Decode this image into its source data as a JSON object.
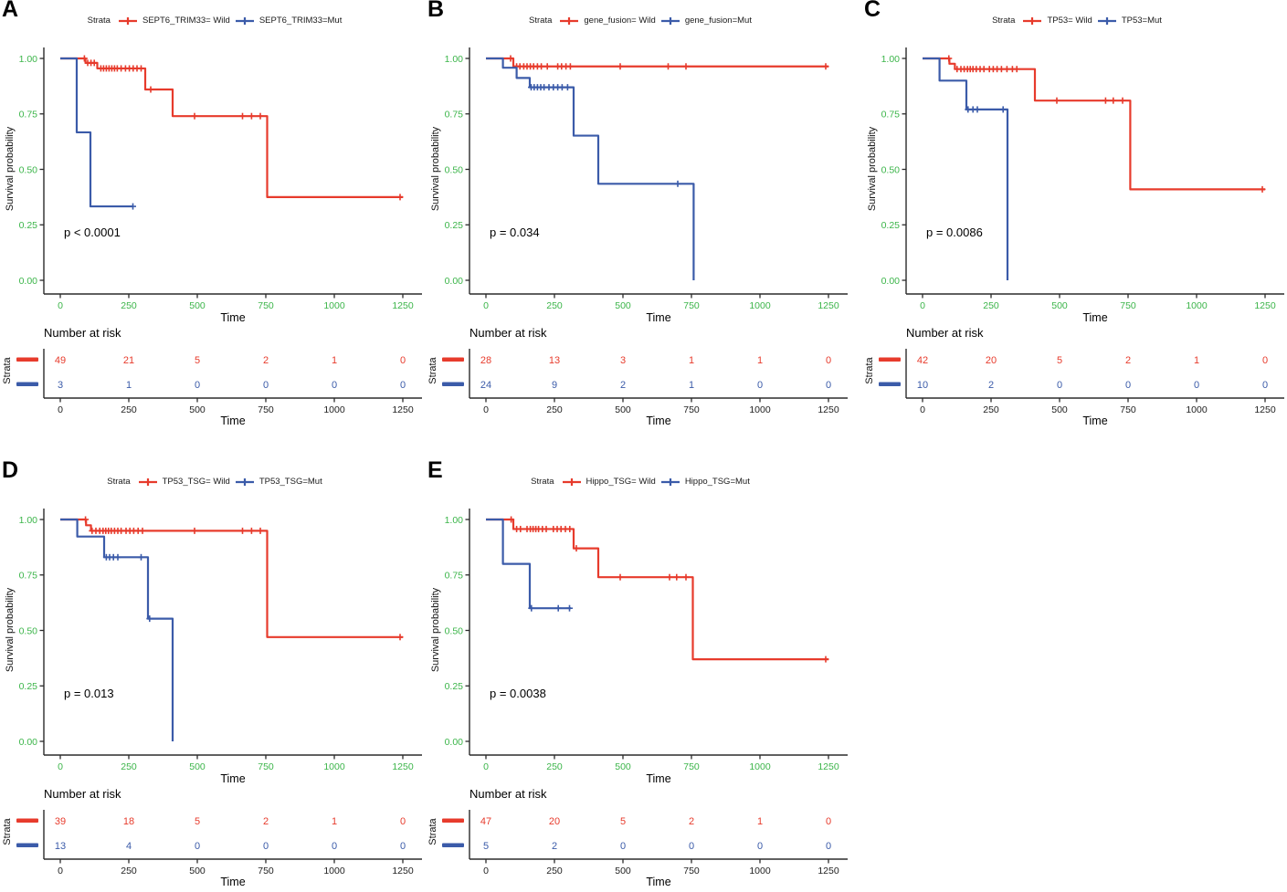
{
  "colors": {
    "wild": "#E73B2C",
    "mut": "#3B5BA9",
    "tick_green": "#3CB54A",
    "axis": "#2B2B2B",
    "risk_tick_text": "#222222"
  },
  "common": {
    "legend_title": "Strata",
    "ylabel": "Survival probability",
    "xlabel": "Time",
    "risk_title": "Number at risk",
    "risk_ylabel": "Strata",
    "xticks": [
      0,
      250,
      500,
      750,
      1000,
      1250
    ],
    "yticks": [
      "1.00",
      "0.75",
      "0.50",
      "0.25",
      "0.00"
    ],
    "xlim": [
      0,
      1250
    ],
    "ylim": [
      0,
      1
    ]
  },
  "chart_data": [
    {
      "panel": "A",
      "type": "line",
      "legend_title": "Strata",
      "xlabel": "Time",
      "ylabel": "Survival probability",
      "p_value": "p < 0.0001",
      "xlim": [
        0,
        1250
      ],
      "xticks": [
        0,
        250,
        500,
        750,
        1000,
        1250
      ],
      "yticks": [
        "1.00",
        "0.75",
        "0.50",
        "0.25",
        "0.00"
      ],
      "series": [
        {
          "name": "SEPT6_TRIM33= Wild",
          "color": "wild",
          "steps": [
            [
              0,
              1
            ],
            [
              92,
              0.98
            ],
            [
              135,
              0.955
            ],
            [
              310,
              0.86
            ],
            [
              410,
              0.74
            ],
            [
              755,
              0.375
            ],
            [
              1250,
              0.375
            ]
          ],
          "censors": [
            [
              88,
              1
            ],
            [
              100,
              0.98
            ],
            [
              112,
              0.98
            ],
            [
              124,
              0.98
            ],
            [
              148,
              0.955
            ],
            [
              158,
              0.955
            ],
            [
              168,
              0.955
            ],
            [
              178,
              0.955
            ],
            [
              188,
              0.955
            ],
            [
              198,
              0.955
            ],
            [
              208,
              0.955
            ],
            [
              222,
              0.955
            ],
            [
              238,
              0.955
            ],
            [
              252,
              0.955
            ],
            [
              266,
              0.955
            ],
            [
              280,
              0.955
            ],
            [
              295,
              0.955
            ],
            [
              330,
              0.86
            ],
            [
              490,
              0.74
            ],
            [
              665,
              0.74
            ],
            [
              698,
              0.74
            ],
            [
              730,
              0.74
            ],
            [
              1240,
              0.375
            ]
          ]
        },
        {
          "name": "SEPT6_TRIM33=Mut",
          "color": "mut",
          "steps": [
            [
              0,
              1
            ],
            [
              60,
              0.667
            ],
            [
              110,
              0.333
            ],
            [
              265,
              0.333
            ]
          ],
          "censors": [
            [
              265,
              0.333
            ]
          ]
        }
      ],
      "risk_table": {
        "title": "Number at risk",
        "ylabel": "Strata",
        "xlabel": "Time",
        "rows": [
          {
            "color": "wild",
            "counts": [
              49,
              21,
              5,
              2,
              1,
              0
            ]
          },
          {
            "color": "mut",
            "counts": [
              3,
              1,
              0,
              0,
              0,
              0
            ]
          }
        ]
      }
    },
    {
      "panel": "B",
      "type": "line",
      "legend_title": "Strata",
      "xlabel": "Time",
      "ylabel": "Survival probability",
      "p_value": "p = 0.034",
      "xlim": [
        0,
        1250
      ],
      "xticks": [
        0,
        250,
        500,
        750,
        1000,
        1250
      ],
      "yticks": [
        "1.00",
        "0.75",
        "0.50",
        "0.25",
        "0.00"
      ],
      "series": [
        {
          "name": "gene_fusion= Wild",
          "color": "wild",
          "steps": [
            [
              0,
              1
            ],
            [
              100,
              0.964
            ],
            [
              1250,
              0.964
            ]
          ],
          "censors": [
            [
              90,
              1
            ],
            [
              112,
              0.964
            ],
            [
              124,
              0.964
            ],
            [
              138,
              0.964
            ],
            [
              150,
              0.964
            ],
            [
              162,
              0.964
            ],
            [
              174,
              0.964
            ],
            [
              188,
              0.964
            ],
            [
              202,
              0.964
            ],
            [
              224,
              0.964
            ],
            [
              262,
              0.964
            ],
            [
              276,
              0.964
            ],
            [
              292,
              0.964
            ],
            [
              308,
              0.964
            ],
            [
              490,
              0.964
            ],
            [
              665,
              0.964
            ],
            [
              730,
              0.964
            ],
            [
              1240,
              0.964
            ]
          ]
        },
        {
          "name": "gene_fusion=Mut",
          "color": "mut",
          "steps": [
            [
              0,
              1
            ],
            [
              62,
              0.958
            ],
            [
              112,
              0.912
            ],
            [
              160,
              0.87
            ],
            [
              320,
              0.652
            ],
            [
              410,
              0.435
            ],
            [
              758,
              0
            ]
          ],
          "censors": [
            [
              165,
              0.87
            ],
            [
              176,
              0.87
            ],
            [
              188,
              0.87
            ],
            [
              200,
              0.87
            ],
            [
              212,
              0.87
            ],
            [
              230,
              0.87
            ],
            [
              246,
              0.87
            ],
            [
              262,
              0.87
            ],
            [
              278,
              0.87
            ],
            [
              298,
              0.87
            ],
            [
              700,
              0.435
            ]
          ]
        }
      ],
      "risk_table": {
        "title": "Number at risk",
        "ylabel": "Strata",
        "xlabel": "Time",
        "rows": [
          {
            "color": "wild",
            "counts": [
              28,
              13,
              3,
              1,
              1,
              0
            ]
          },
          {
            "color": "mut",
            "counts": [
              24,
              9,
              2,
              1,
              0,
              0
            ]
          }
        ]
      }
    },
    {
      "panel": "C",
      "type": "line",
      "legend_title": "Strata",
      "xlabel": "Time",
      "ylabel": "Survival probability",
      "p_value": "p = 0.0086",
      "xlim": [
        0,
        1250
      ],
      "xticks": [
        0,
        250,
        500,
        750,
        1000,
        1250
      ],
      "yticks": [
        "1.00",
        "0.75",
        "0.50",
        "0.25",
        "0.00"
      ],
      "series": [
        {
          "name": "TP53= Wild",
          "color": "wild",
          "steps": [
            [
              0,
              1
            ],
            [
              98,
              0.976
            ],
            [
              118,
              0.952
            ],
            [
              410,
              0.81
            ],
            [
              758,
              0.41
            ],
            [
              1250,
              0.41
            ]
          ],
          "censors": [
            [
              96,
              1
            ],
            [
              126,
              0.952
            ],
            [
              140,
              0.952
            ],
            [
              152,
              0.952
            ],
            [
              164,
              0.952
            ],
            [
              174,
              0.952
            ],
            [
              184,
              0.952
            ],
            [
              196,
              0.952
            ],
            [
              210,
              0.952
            ],
            [
              224,
              0.952
            ],
            [
              244,
              0.952
            ],
            [
              258,
              0.952
            ],
            [
              272,
              0.952
            ],
            [
              288,
              0.952
            ],
            [
              308,
              0.952
            ],
            [
              328,
              0.952
            ],
            [
              344,
              0.952
            ],
            [
              490,
              0.81
            ],
            [
              668,
              0.81
            ],
            [
              696,
              0.81
            ],
            [
              730,
              0.81
            ],
            [
              1240,
              0.41
            ]
          ]
        },
        {
          "name": "TP53=Mut",
          "color": "mut",
          "steps": [
            [
              0,
              1
            ],
            [
              62,
              0.9
            ],
            [
              160,
              0.77
            ],
            [
              310,
              0
            ]
          ],
          "censors": [
            [
              166,
              0.77
            ],
            [
              184,
              0.77
            ],
            [
              200,
              0.77
            ],
            [
              294,
              0.77
            ]
          ]
        }
      ],
      "risk_table": {
        "title": "Number at risk",
        "ylabel": "Strata",
        "xlabel": "Time",
        "rows": [
          {
            "color": "wild",
            "counts": [
              42,
              20,
              5,
              2,
              1,
              0
            ]
          },
          {
            "color": "mut",
            "counts": [
              10,
              2,
              0,
              0,
              0,
              0
            ]
          }
        ]
      }
    },
    {
      "panel": "D",
      "type": "line",
      "legend_title": "Strata",
      "xlabel": "Time",
      "ylabel": "Survival probability",
      "p_value": "p = 0.013",
      "xlim": [
        0,
        1250
      ],
      "xticks": [
        0,
        250,
        500,
        750,
        1000,
        1250
      ],
      "yticks": [
        "1.00",
        "0.75",
        "0.50",
        "0.25",
        "0.00"
      ],
      "series": [
        {
          "name": "TP53_TSG= Wild",
          "color": "wild",
          "steps": [
            [
              0,
              1
            ],
            [
              94,
              0.974
            ],
            [
              112,
              0.949
            ],
            [
              755,
              0.47
            ],
            [
              1250,
              0.47
            ]
          ],
          "censors": [
            [
              92,
              1
            ],
            [
              116,
              0.949
            ],
            [
              130,
              0.949
            ],
            [
              144,
              0.949
            ],
            [
              156,
              0.949
            ],
            [
              166,
              0.949
            ],
            [
              176,
              0.949
            ],
            [
              186,
              0.949
            ],
            [
              198,
              0.949
            ],
            [
              210,
              0.949
            ],
            [
              222,
              0.949
            ],
            [
              240,
              0.949
            ],
            [
              254,
              0.949
            ],
            [
              268,
              0.949
            ],
            [
              284,
              0.949
            ],
            [
              300,
              0.949
            ],
            [
              490,
              0.949
            ],
            [
              665,
              0.949
            ],
            [
              698,
              0.949
            ],
            [
              730,
              0.949
            ],
            [
              1240,
              0.47
            ]
          ]
        },
        {
          "name": "TP53_TSG=Mut",
          "color": "mut",
          "steps": [
            [
              0,
              1
            ],
            [
              62,
              0.923
            ],
            [
              160,
              0.83
            ],
            [
              320,
              0.553
            ],
            [
              410,
              0
            ]
          ],
          "censors": [
            [
              168,
              0.83
            ],
            [
              180,
              0.83
            ],
            [
              194,
              0.83
            ],
            [
              210,
              0.83
            ],
            [
              295,
              0.83
            ],
            [
              326,
              0.553
            ]
          ]
        }
      ],
      "risk_table": {
        "title": "Number at risk",
        "ylabel": "Strata",
        "xlabel": "Time",
        "rows": [
          {
            "color": "wild",
            "counts": [
              39,
              18,
              5,
              2,
              1,
              0
            ]
          },
          {
            "color": "mut",
            "counts": [
              13,
              4,
              0,
              0,
              0,
              0
            ]
          }
        ]
      }
    },
    {
      "panel": "E",
      "type": "line",
      "legend_title": "Strata",
      "xlabel": "Time",
      "ylabel": "Survival probability",
      "p_value": "p = 0.0038",
      "xlim": [
        0,
        1250
      ],
      "xticks": [
        0,
        250,
        500,
        750,
        1000,
        1250
      ],
      "yticks": [
        "1.00",
        "0.75",
        "0.50",
        "0.25",
        "0.00"
      ],
      "series": [
        {
          "name": "Hippo_TSG= Wild",
          "color": "wild",
          "steps": [
            [
              0,
              1
            ],
            [
              100,
              0.957
            ],
            [
              320,
              0.87
            ],
            [
              410,
              0.74
            ],
            [
              755,
              0.37
            ],
            [
              1250,
              0.37
            ]
          ],
          "censors": [
            [
              92,
              1
            ],
            [
              112,
              0.957
            ],
            [
              126,
              0.957
            ],
            [
              150,
              0.957
            ],
            [
              162,
              0.957
            ],
            [
              172,
              0.957
            ],
            [
              182,
              0.957
            ],
            [
              192,
              0.957
            ],
            [
              206,
              0.957
            ],
            [
              220,
              0.957
            ],
            [
              246,
              0.957
            ],
            [
              260,
              0.957
            ],
            [
              274,
              0.957
            ],
            [
              290,
              0.957
            ],
            [
              306,
              0.957
            ],
            [
              330,
              0.87
            ],
            [
              490,
              0.74
            ],
            [
              670,
              0.74
            ],
            [
              696,
              0.74
            ],
            [
              730,
              0.74
            ],
            [
              1240,
              0.37
            ]
          ]
        },
        {
          "name": "Hippo_TSG=Mut",
          "color": "mut",
          "steps": [
            [
              0,
              1
            ],
            [
              62,
              0.8
            ],
            [
              160,
              0.6
            ],
            [
              310,
              0.6
            ]
          ],
          "censors": [
            [
              166,
              0.6
            ],
            [
              264,
              0.6
            ],
            [
              305,
              0.6
            ]
          ]
        }
      ],
      "risk_table": {
        "title": "Number at risk",
        "ylabel": "Strata",
        "xlabel": "Time",
        "rows": [
          {
            "color": "wild",
            "counts": [
              47,
              20,
              5,
              2,
              1,
              0
            ]
          },
          {
            "color": "mut",
            "counts": [
              5,
              2,
              0,
              0,
              0,
              0
            ]
          }
        ]
      }
    }
  ]
}
